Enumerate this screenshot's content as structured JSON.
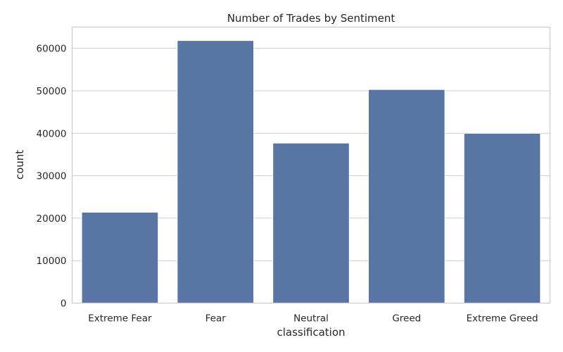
{
  "chart_data": {
    "type": "bar",
    "title": "Number of Trades by Sentiment",
    "xlabel": "classification",
    "ylabel": "count",
    "categories": [
      "Extreme Fear",
      "Fear",
      "Neutral",
      "Greed",
      "Extreme Greed"
    ],
    "values": [
      21400,
      61837,
      37686,
      50303,
      39992
    ],
    "ylim": [
      0,
      65000
    ],
    "yticks": [
      0,
      10000,
      20000,
      30000,
      40000,
      50000,
      60000
    ],
    "grid": "horizontal",
    "bar_color": "#5975a4"
  }
}
